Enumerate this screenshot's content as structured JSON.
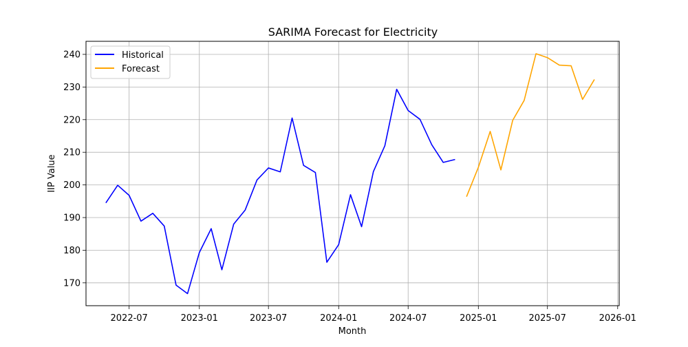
{
  "chart_data": {
    "type": "line",
    "title": "SARIMA Forecast for Electricity",
    "xlabel": "Month",
    "ylabel": "IIP Value",
    "grid": true,
    "legend_position": "top-left",
    "xlim": [
      "2022-03-10",
      "2026-01-05"
    ],
    "ylim": [
      163,
      244
    ],
    "x_ticks": [
      "2022-07",
      "2023-01",
      "2023-07",
      "2024-01",
      "2024-07",
      "2025-01",
      "2025-07",
      "2026-01"
    ],
    "y_ticks": [
      170,
      180,
      190,
      200,
      210,
      220,
      230,
      240
    ],
    "series": [
      {
        "name": "Historical",
        "color": "#0000ff",
        "x": [
          "2022-05",
          "2022-06",
          "2022-07",
          "2022-08",
          "2022-09",
          "2022-10",
          "2022-11",
          "2022-12",
          "2023-01",
          "2023-02",
          "2023-03",
          "2023-04",
          "2023-05",
          "2023-06",
          "2023-07",
          "2023-08",
          "2023-09",
          "2023-10",
          "2023-11",
          "2023-12",
          "2024-01",
          "2024-02",
          "2024-03",
          "2024-04",
          "2024-05",
          "2024-06",
          "2024-07",
          "2024-08",
          "2024-09",
          "2024-10",
          "2024-11"
        ],
        "values": [
          194.5,
          199.9,
          196.8,
          188.9,
          191.3,
          187.4,
          169.3,
          166.7,
          179.3,
          186.6,
          174.0,
          188.0,
          192.3,
          201.5,
          205.2,
          204.0,
          220.5,
          206.0,
          203.8,
          176.3,
          181.7,
          197.0,
          187.2,
          204.1,
          212.0,
          229.3,
          222.8,
          220.1,
          212.3,
          206.9,
          207.8
        ]
      },
      {
        "name": "Forecast",
        "color": "#ffa500",
        "x": [
          "2024-12",
          "2025-01",
          "2025-02",
          "2025-03",
          "2025-04",
          "2025-05",
          "2025-06",
          "2025-07",
          "2025-08",
          "2025-09",
          "2025-10",
          "2025-11"
        ],
        "values": [
          196.4,
          205.4,
          216.4,
          204.6,
          219.8,
          225.9,
          240.2,
          239.0,
          236.7,
          236.5,
          226.2,
          232.3
        ]
      }
    ]
  }
}
